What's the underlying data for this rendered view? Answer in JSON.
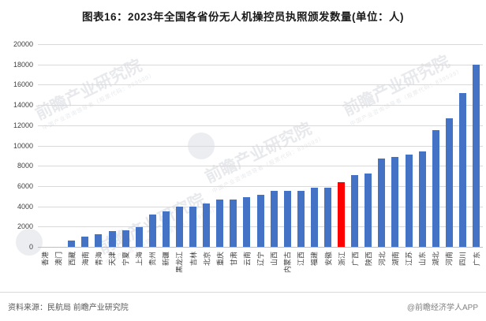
{
  "title": "图表16：2023年全国各省份无人机操控员执照颁发数量(单位：人)",
  "chart_data": {
    "type": "bar",
    "title": "图表16：2023年全国各省份无人机操控员执照颁发数量(单位：人)",
    "xlabel": "",
    "ylabel": "",
    "ylim": [
      0,
      20000
    ],
    "ytick_step": 2000,
    "grid": true,
    "legend_position": "none",
    "categories": [
      "香港",
      "澳门",
      "西藏",
      "海南",
      "青海",
      "天津",
      "宁夏",
      "上海",
      "贵州",
      "新疆",
      "黑龙江",
      "吉林",
      "北京",
      "重庆",
      "甘肃",
      "云南",
      "辽宁",
      "山西",
      "内蒙古",
      "江西",
      "福建",
      "安徽",
      "浙江",
      "广西",
      "陕西",
      "河北",
      "湖南",
      "江苏",
      "山东",
      "湖北",
      "河南",
      "四川",
      "广东"
    ],
    "values": [
      5,
      10,
      650,
      1050,
      1250,
      1550,
      1650,
      1950,
      3200,
      3500,
      3950,
      3950,
      4300,
      4700,
      4700,
      4900,
      5150,
      5500,
      5500,
      5500,
      5800,
      5800,
      6400,
      7100,
      7200,
      8700,
      8850,
      9100,
      9400,
      11500,
      12700,
      15200,
      18000
    ],
    "highlight_category": "浙江",
    "highlight_index": 22,
    "bar_color": "#4472C4",
    "highlight_color": "#FF0000"
  },
  "footer": {
    "source": "资料来源：民航局 前瞻产业研究院",
    "brand": "@前瞻经济学人APP"
  },
  "watermark": {
    "text": "前瞻产业研究院",
    "subtext": "中国产业咨询领导者（股票代码：839599）"
  }
}
